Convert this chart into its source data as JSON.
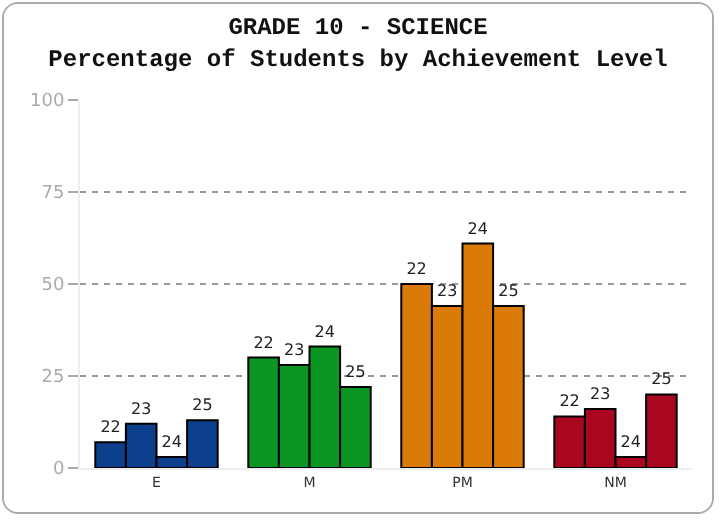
{
  "chart_data": {
    "type": "bar",
    "title": "GRADE 10 - SCIENCE",
    "subtitle": "Percentage of Students by Achievement Level",
    "categories": [
      "E",
      "M",
      "PM",
      "NM"
    ],
    "series": [
      {
        "name": "22",
        "colors": [
          "#0c408c",
          "#0b9523",
          "#d97b06",
          "#a8071f"
        ],
        "values": [
          7,
          30,
          50,
          14
        ]
      },
      {
        "name": "23",
        "colors": [
          "#0c408c",
          "#0b9523",
          "#d97b06",
          "#a8071f"
        ],
        "values": [
          12,
          28,
          44,
          16
        ]
      },
      {
        "name": "24",
        "colors": [
          "#0c408c",
          "#0b9523",
          "#d97b06",
          "#a8071f"
        ],
        "values": [
          3,
          33,
          61,
          3
        ]
      },
      {
        "name": "25",
        "colors": [
          "#0c408c",
          "#0b9523",
          "#d97b06",
          "#a8071f"
        ],
        "values": [
          13,
          22,
          44,
          20
        ]
      }
    ],
    "ylim": [
      0,
      100
    ],
    "yticks": [
      0,
      25,
      50,
      75,
      100
    ],
    "grid": "y",
    "legend": false
  }
}
